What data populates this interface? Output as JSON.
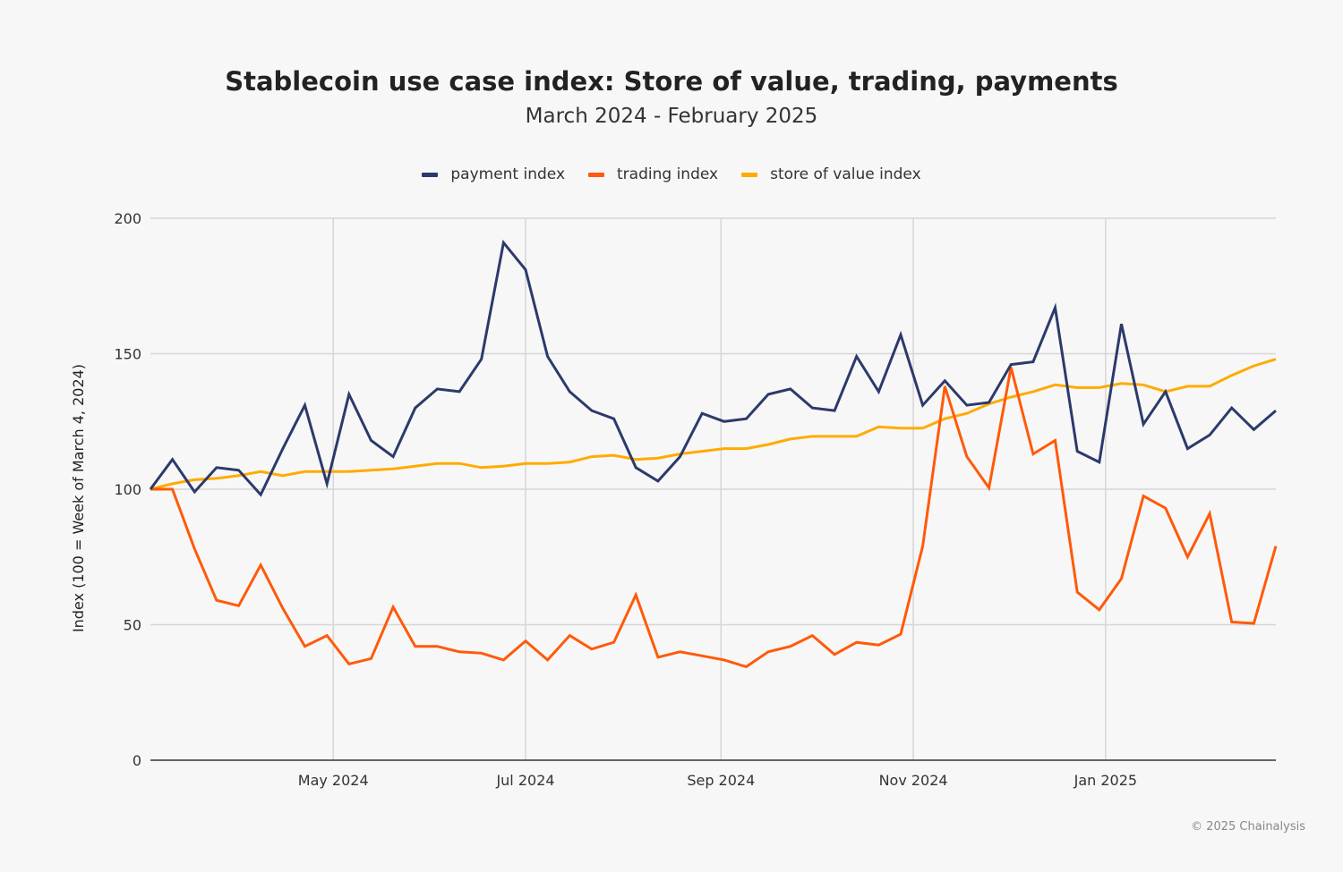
{
  "chart_data": {
    "type": "line",
    "title": "Stablecoin use case index: Store of value, trading, payments",
    "subtitle": "March 2024 - February 2025",
    "xlabel": "",
    "ylabel": "Index (100 = Week of March 4, 2024)",
    "ylim": [
      0,
      200
    ],
    "yticks": [
      "0",
      "50",
      "100",
      "150",
      "200"
    ],
    "xticks": [
      {
        "label": "May 2024",
        "date": "2024-05-01"
      },
      {
        "label": "Jul 2024",
        "date": "2024-07-01"
      },
      {
        "label": "Sep 2024",
        "date": "2024-09-01"
      },
      {
        "label": "Nov 2024",
        "date": "2024-11-01"
      },
      {
        "label": "Jan 2025",
        "date": "2025-01-01"
      }
    ],
    "x_start": "2024-03-04",
    "x_end": "2025-02-24",
    "x_frequency": "weekly",
    "grid": true,
    "legend_position": "top",
    "series": [
      {
        "name": "payment index",
        "color": "#2c3a6b",
        "values": [
          100,
          111,
          99,
          108,
          107,
          98,
          115,
          131,
          102,
          135,
          118,
          112,
          130,
          137,
          136,
          148,
          191,
          181,
          149,
          136,
          129,
          126,
          108,
          103,
          112,
          128,
          125,
          126,
          135,
          137,
          130,
          129,
          149,
          136,
          157,
          131,
          140,
          131,
          132,
          146,
          147,
          167,
          114,
          110,
          161,
          124,
          136,
          115,
          120,
          130,
          122,
          129
        ]
      },
      {
        "name": "trading index",
        "color": "#ff5a0a",
        "values": [
          100,
          100,
          78,
          59,
          57,
          72,
          56,
          42,
          46,
          35.5,
          37.5,
          56.5,
          42,
          42,
          40,
          39.5,
          37,
          44,
          37,
          46,
          41,
          43.5,
          61,
          38,
          40,
          38.5,
          37,
          34.5,
          40,
          42,
          46,
          39,
          43.5,
          42.5,
          46.5,
          79,
          138,
          112,
          100.5,
          145,
          113,
          118,
          62,
          55.5,
          67,
          97.5,
          93,
          75,
          91,
          51,
          50.5,
          79
        ]
      },
      {
        "name": "store of value index",
        "color": "#ffab00",
        "values": [
          100,
          102,
          103.5,
          104,
          105,
          106.5,
          105,
          106.5,
          106.5,
          106.5,
          107,
          107.5,
          108.5,
          109.5,
          109.5,
          108,
          108.5,
          109.5,
          109.5,
          110,
          112,
          112.5,
          111,
          111.5,
          113,
          114,
          115,
          115,
          116.5,
          118.5,
          119.5,
          119.5,
          119.5,
          123,
          122.5,
          122.5,
          126,
          128,
          131.5,
          134,
          136,
          138.5,
          137.5,
          137.5,
          139,
          138.5,
          136,
          138,
          138,
          142,
          145.5,
          148
        ]
      }
    ]
  },
  "footer": {
    "credit": "© 2025 Chainalysis"
  }
}
